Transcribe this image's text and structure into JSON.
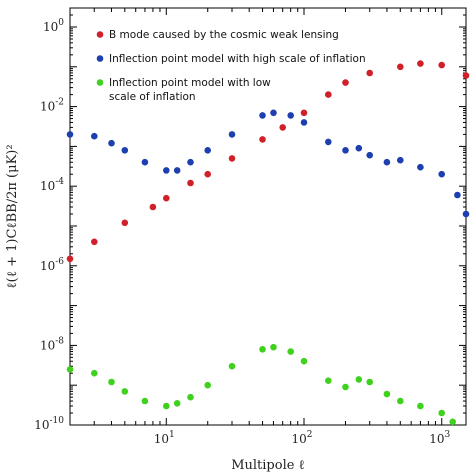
{
  "chart_data": {
    "type": "scatter",
    "xscale": "log",
    "yscale": "log",
    "xlim": [
      2,
      1500
    ],
    "ylim": [
      1e-10,
      3
    ],
    "xlabel": "Multipole ℓ",
    "ylabel": "ℓ(ℓ + 1)CℓBB/2π  (μK)²",
    "legend_position": "top-right",
    "x_ticks": [
      {
        "value": 10,
        "base": "10",
        "exp": "1"
      },
      {
        "value": 100,
        "base": "10",
        "exp": "2"
      },
      {
        "value": 1000,
        "base": "10",
        "exp": "3"
      }
    ],
    "y_ticks": [
      {
        "value": 1,
        "base": "10",
        "exp": "0"
      },
      {
        "value": 0.01,
        "base": "10",
        "exp": "-2"
      },
      {
        "value": 0.0001,
        "base": "10",
        "exp": "-4"
      },
      {
        "value": 1e-06,
        "base": "10",
        "exp": "-6"
      },
      {
        "value": 1e-08,
        "base": "10",
        "exp": "-8"
      },
      {
        "value": 1e-10,
        "base": "10",
        "exp": "-10"
      }
    ],
    "series": [
      {
        "name": "B mode caused by the cosmic weak lensing",
        "color": "#d0202a",
        "x": [
          2,
          3,
          5,
          8,
          10,
          15,
          20,
          30,
          50,
          70,
          100,
          150,
          200,
          300,
          500,
          700,
          1000,
          1500
        ],
        "y": [
          1.5e-06,
          4e-06,
          1.2e-05,
          3e-05,
          5e-05,
          0.00012,
          0.0002,
          0.0005,
          0.0015,
          0.003,
          0.007,
          0.02,
          0.04,
          0.07,
          0.1,
          0.12,
          0.11,
          0.06
        ]
      },
      {
        "name": "Inflection point model with high scale of inflation",
        "color": "#1e3fb0",
        "x": [
          2,
          3,
          4,
          5,
          7,
          10,
          12,
          15,
          20,
          30,
          50,
          60,
          80,
          100,
          150,
          200,
          250,
          300,
          400,
          500,
          700,
          1000,
          1300,
          1500
        ],
        "y": [
          0.002,
          0.0018,
          0.0012,
          0.0008,
          0.0004,
          0.00025,
          0.00025,
          0.0004,
          0.0008,
          0.002,
          0.006,
          0.007,
          0.006,
          0.004,
          0.0013,
          0.0008,
          0.0009,
          0.0006,
          0.0004,
          0.00045,
          0.0003,
          0.0002,
          6e-05,
          2e-05
        ]
      },
      {
        "name": "Inflection point model with low scale of inflation",
        "color": "#3fd11e",
        "x": [
          2,
          3,
          4,
          5,
          7,
          10,
          12,
          15,
          20,
          30,
          50,
          60,
          80,
          100,
          150,
          200,
          250,
          300,
          400,
          500,
          700,
          1000,
          1200
        ],
        "y": [
          2.5e-09,
          2e-09,
          1.2e-09,
          7e-10,
          4e-10,
          3e-10,
          3.5e-10,
          5e-10,
          1e-09,
          3e-09,
          8e-09,
          9e-09,
          7e-09,
          4e-09,
          1.3e-09,
          9e-10,
          1.4e-09,
          1.2e-09,
          6e-10,
          4e-10,
          3e-10,
          2e-10,
          1.2e-10
        ]
      }
    ],
    "legend": [
      {
        "lines": [
          "B mode caused by the cosmic weak lensing"
        ]
      },
      {
        "lines": [
          "Inflection point model with high scale of inflation"
        ]
      },
      {
        "lines": [
          "Inflection point model with low",
          "scale of inflation"
        ]
      }
    ]
  }
}
